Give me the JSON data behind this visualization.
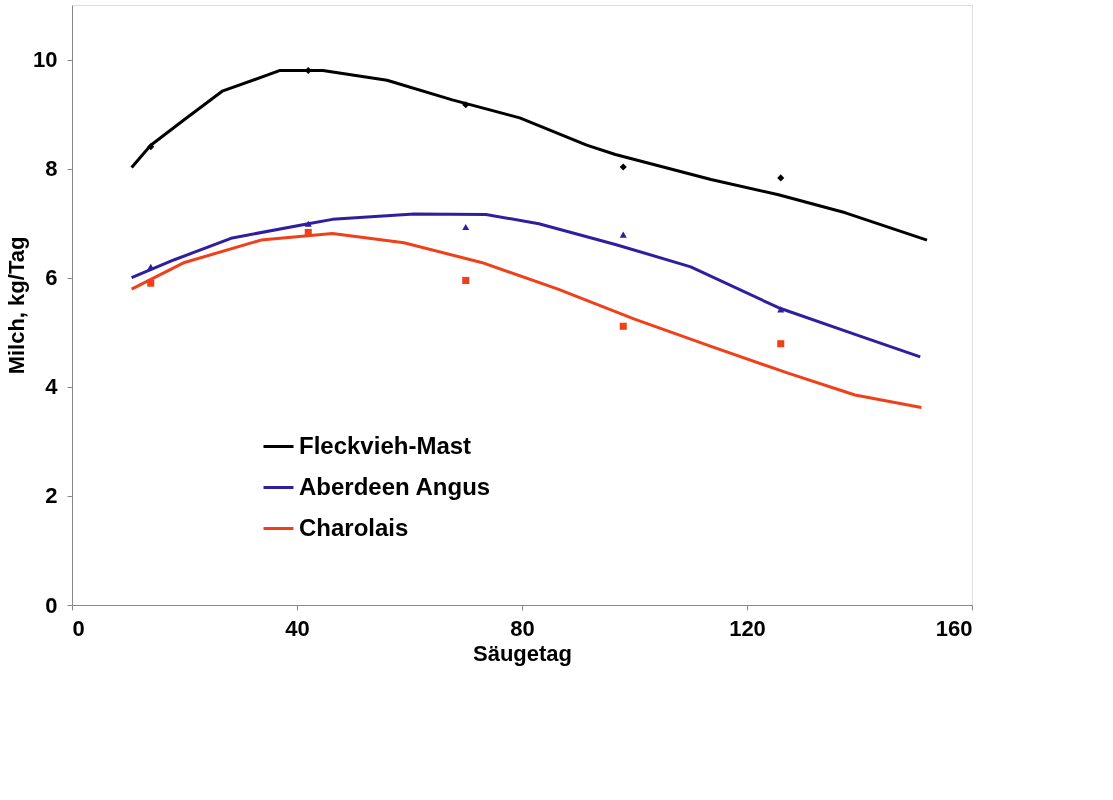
{
  "chart_data": {
    "type": "line",
    "xlabel": "Säugetag",
    "ylabel": "Milch, kg/Tag",
    "xlim": [
      0,
      160
    ],
    "xticks": [
      0,
      40,
      80,
      120,
      160
    ],
    "ylim": [
      0,
      11
    ],
    "yticks": [
      0,
      2,
      4,
      6,
      8,
      10
    ],
    "grid": false,
    "legend": "bottom left",
    "line_style": "solid",
    "series": [
      {
        "name": "Fleckvieh-Mast",
        "marker": "none",
        "color": "#000000",
        "x": [
          10.6,
          14,
          20,
          26.7,
          37,
          44.6,
          56,
          67.6,
          79.6,
          91.5,
          96.6,
          113.6,
          125.6,
          137.5,
          152
        ],
        "values": [
          8.02,
          8.43,
          8.9,
          9.42,
          9.8,
          9.8,
          9.62,
          9.26,
          8.93,
          8.43,
          8.26,
          7.8,
          7.52,
          7.19,
          6.69
        ]
      },
      {
        "name": "Aberdeen Angus",
        "marker": "none",
        "color": "#2e1f9e",
        "x": [
          10.6,
          18.2,
          28.5,
          42,
          46.3,
          60.8,
          73.6,
          83,
          96.6,
          110,
          125.6,
          139.2,
          150.8
        ],
        "values": [
          6.0,
          6.33,
          6.73,
          6.99,
          7.07,
          7.17,
          7.16,
          6.99,
          6.61,
          6.2,
          5.45,
          4.96,
          4.55
        ]
      },
      {
        "name": "Charolais",
        "marker": "none",
        "color": "#f0401a",
        "x": [
          10.6,
          20,
          33.6,
          46.3,
          59,
          72.8,
          86.4,
          100,
          113.6,
          127.3,
          139.2,
          151
        ],
        "values": [
          5.79,
          6.28,
          6.69,
          6.81,
          6.64,
          6.28,
          5.79,
          5.24,
          4.74,
          4.25,
          3.85,
          3.62
        ]
      },
      {
        "type": "scatter",
        "marker": "diamond",
        "color": "#000000",
        "x": [
          14,
          42,
          70,
          98,
          126
        ],
        "values": [
          8.4,
          9.8,
          9.17,
          8.03,
          7.83
        ]
      },
      {
        "type": "scatter",
        "marker": "triangle",
        "color": "#2e1f9e",
        "x": [
          14,
          42,
          70,
          98,
          126
        ],
        "values": [
          6.2,
          6.99,
          6.93,
          6.79,
          5.42
        ]
      },
      {
        "type": "scatter",
        "marker": "square",
        "color": "#f0401a",
        "x": [
          14,
          42,
          70,
          98,
          126
        ],
        "values": [
          5.9,
          6.83,
          5.95,
          5.11,
          4.79
        ]
      }
    ]
  }
}
